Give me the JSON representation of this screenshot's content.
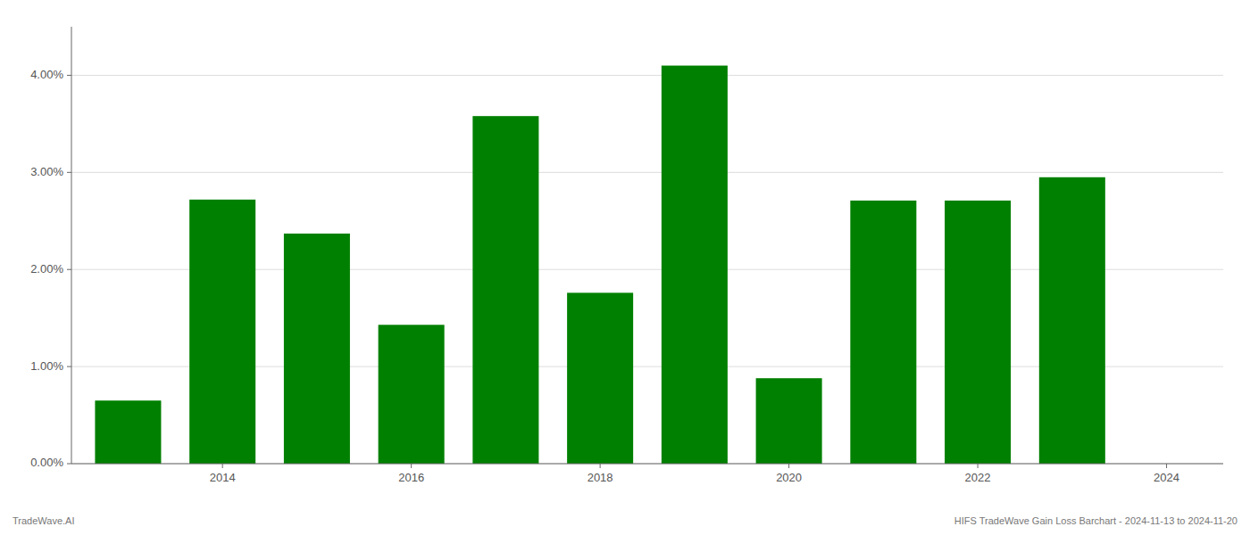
{
  "chart_data": {
    "type": "bar",
    "x": [
      2013,
      2014,
      2015,
      2016,
      2017,
      2018,
      2019,
      2020,
      2021,
      2022,
      2023
    ],
    "values": [
      0.0065,
      0.0272,
      0.0237,
      0.0143,
      0.0358,
      0.0176,
      0.041,
      0.0088,
      0.0271,
      0.0271,
      0.0295
    ],
    "color": "#008000",
    "xlim": [
      2012.4,
      2024.6
    ],
    "xticks": [
      2014,
      2016,
      2018,
      2020,
      2022,
      2024
    ],
    "ylim": [
      0,
      0.045
    ],
    "yticks": [
      {
        "value": 0.0,
        "label": "0.00%"
      },
      {
        "value": 0.01,
        "label": "1.00%"
      },
      {
        "value": 0.02,
        "label": "2.00%"
      },
      {
        "value": 0.03,
        "label": "3.00%"
      },
      {
        "value": 0.04,
        "label": "4.00%"
      }
    ],
    "grid": true,
    "annotations": [
      "TradeWave.AI",
      "HIFS TradeWave Gain Loss Barchart - 2024-11-13 to 2024-11-20"
    ]
  }
}
